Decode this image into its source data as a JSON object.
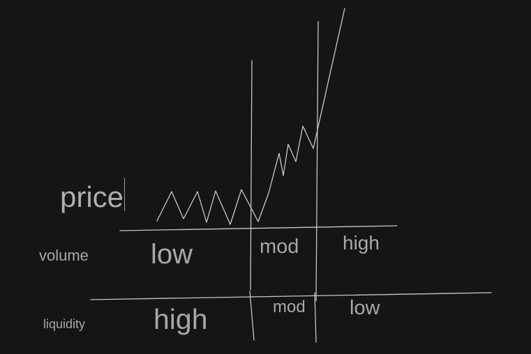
{
  "diagram": {
    "row_labels": {
      "price": "price",
      "volume": "volume",
      "liquidity": "liquidity"
    },
    "volume_row": {
      "low": "low",
      "mod": "mod",
      "high": "high"
    },
    "liquidity_row": {
      "high": "high",
      "mod": "mod",
      "low": "low"
    }
  },
  "colors": {
    "background": "#141517",
    "stroke": "#c9c9cb",
    "text": "#a8a8aa"
  }
}
